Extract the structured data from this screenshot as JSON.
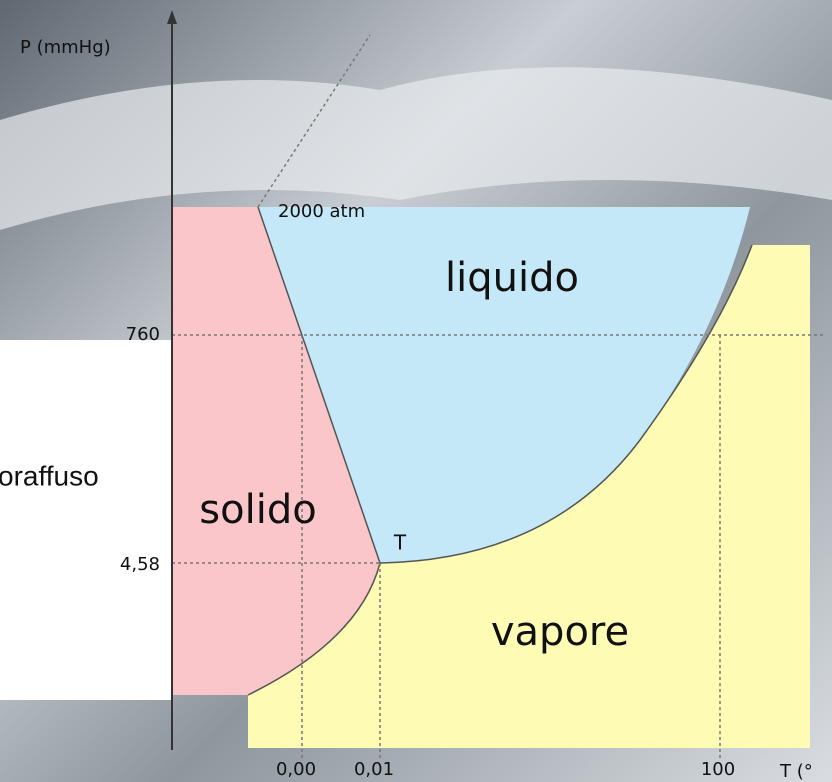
{
  "diagram": {
    "axis_y_label": "P (mmHg)",
    "axis_x_label": "T (°",
    "annotation_top": "2000 atm",
    "side_text": "oraffuso",
    "regions": {
      "liquid": "liquido",
      "solid": "solido",
      "vapor": "vapore"
    },
    "triple_point": "T",
    "p_labels": [
      "760",
      "4,58"
    ],
    "t_labels": [
      "0,00",
      "0,01",
      "100"
    ]
  }
}
